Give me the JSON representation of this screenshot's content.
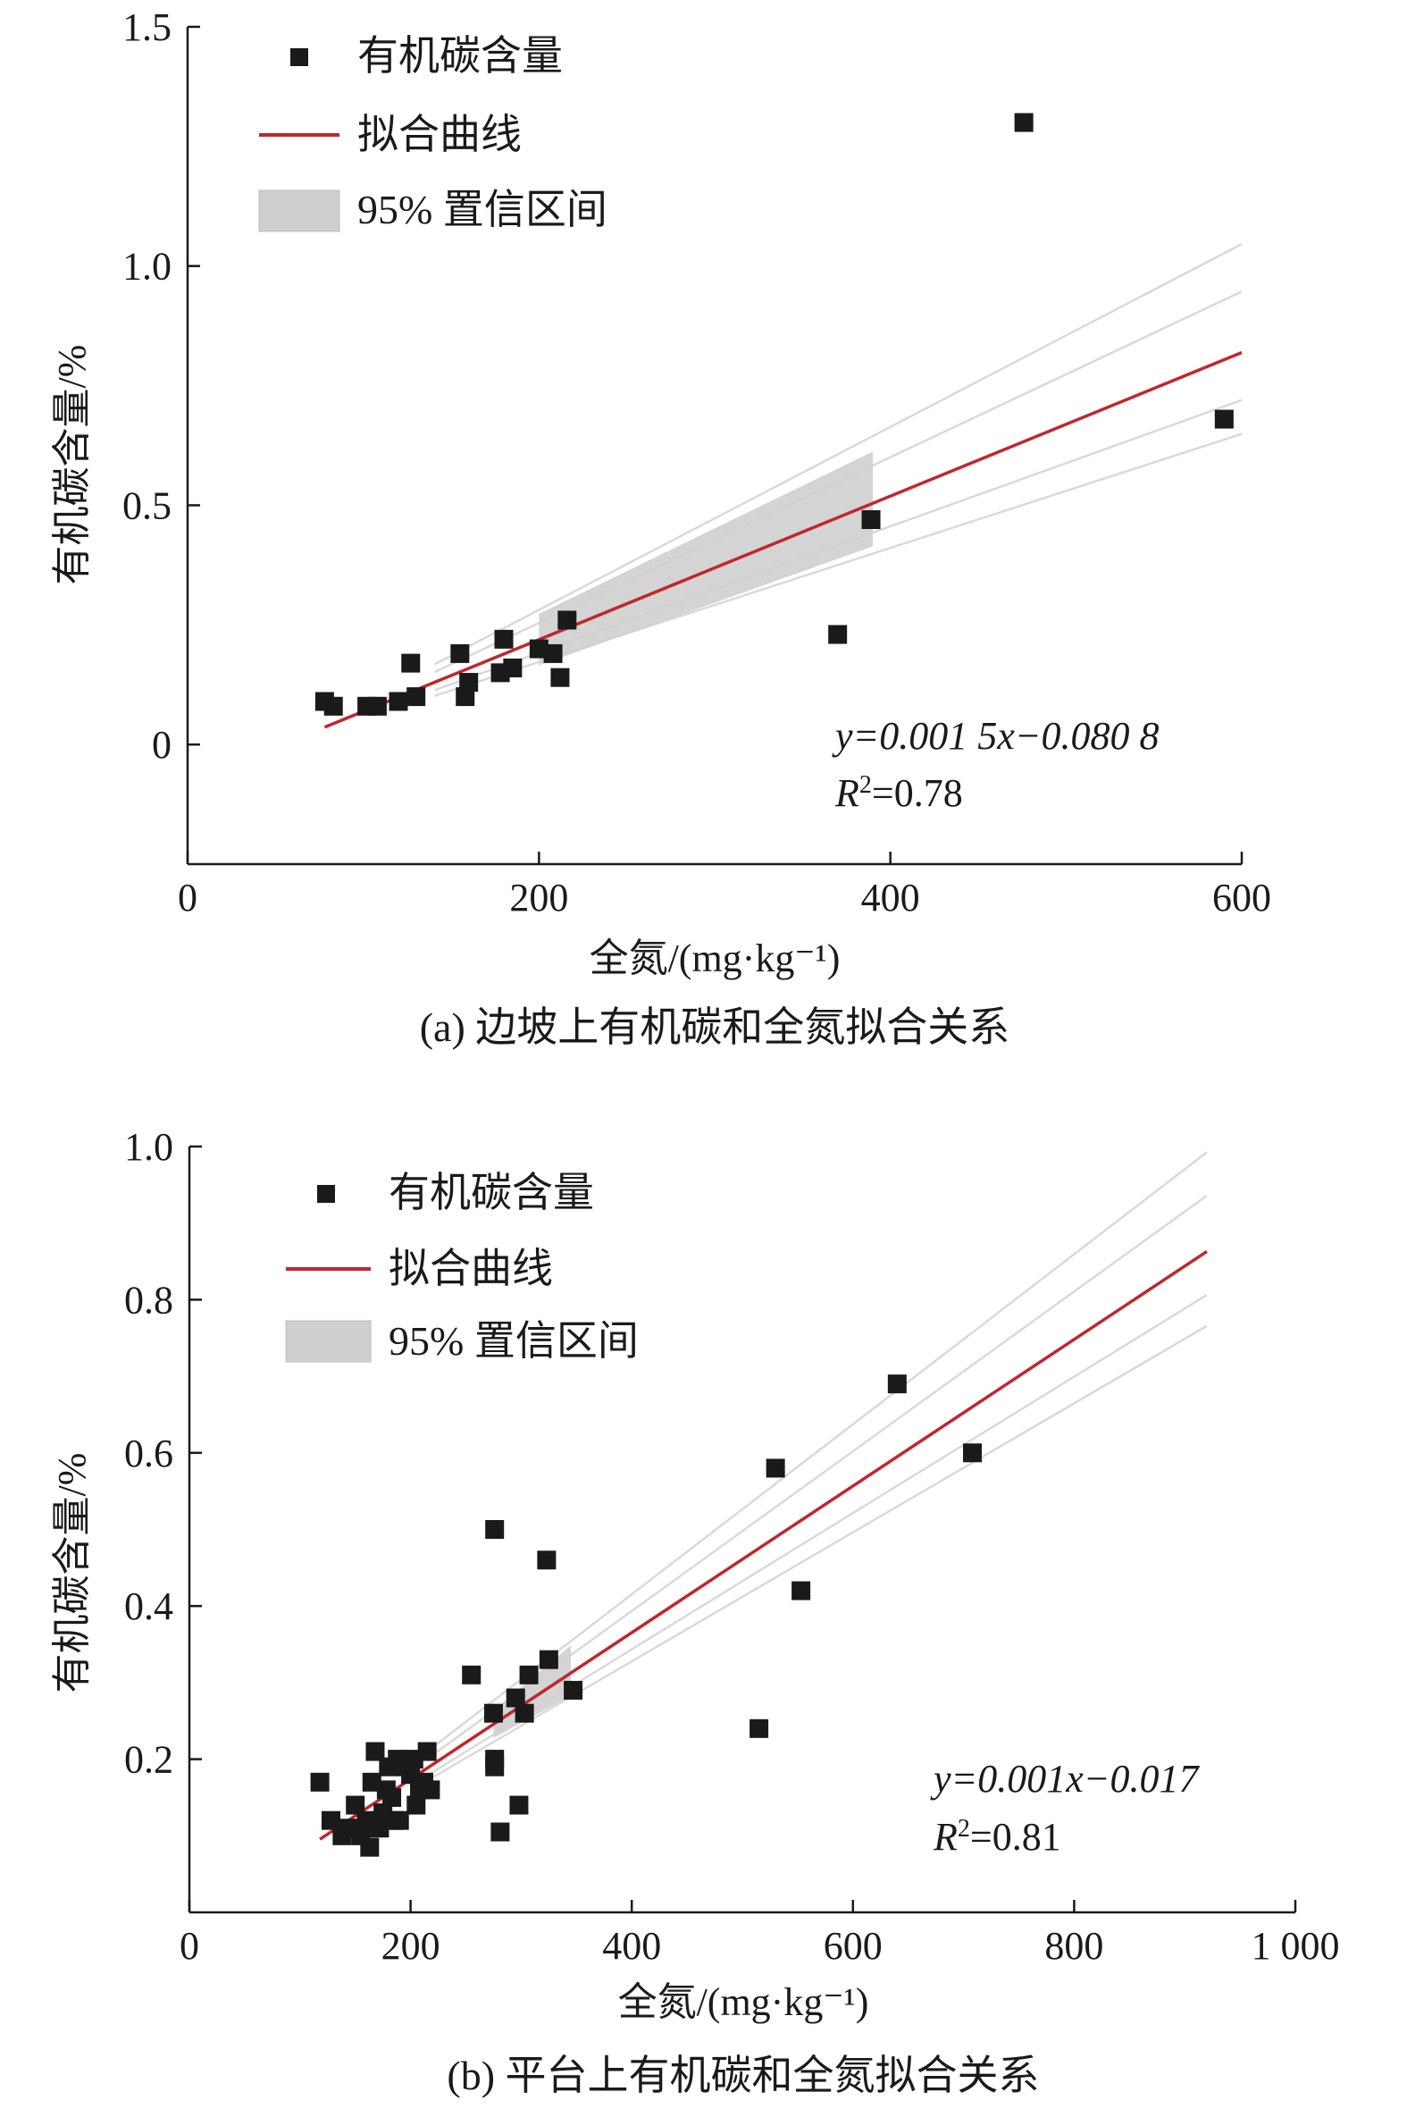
{
  "chart_data": [
    {
      "type": "scatter",
      "panel_caption": "(a) 边坡上有机碳和全氮拟合关系",
      "xlabel": "全氮/(mg·kg⁻¹)",
      "ylabel": "有机碳含量/%",
      "xlim": [
        0,
        600
      ],
      "ylim": [
        -0.25,
        1.5
      ],
      "x_ticks": [
        0,
        200,
        400,
        600
      ],
      "x_tick_labels": [
        "0",
        "200",
        "400",
        "600"
      ],
      "y_ticks": [
        0,
        0.5,
        1.0,
        1.5
      ],
      "y_tick_labels": [
        "0",
        "0.5",
        "1.0",
        "1.5"
      ],
      "legend": {
        "position": "top-left",
        "entries": [
          "有机碳含量",
          "拟合曲线",
          "95% 置信区间"
        ]
      },
      "equation": "y=0.001 5x−0.080 8",
      "r2_prefix": "R",
      "r2_sup": "2",
      "r2_value": "=0.78",
      "fit": {
        "slope": 0.0015,
        "intercept": -0.0808,
        "x_range": [
          78,
          600
        ]
      },
      "confidence_band": {
        "x_range": [
          200,
          390
        ],
        "upper_offset": 0.09,
        "lower_offset": 0.09
      },
      "colors": {
        "fit_line": "#c0272d",
        "points": "#1a1a1a",
        "band": "#cfcfcf"
      },
      "points": [
        [
          78,
          0.09
        ],
        [
          83,
          0.08
        ],
        [
          102,
          0.08
        ],
        [
          108,
          0.08
        ],
        [
          120,
          0.09
        ],
        [
          127,
          0.17
        ],
        [
          130,
          0.1
        ],
        [
          155,
          0.19
        ],
        [
          158,
          0.1
        ],
        [
          160,
          0.13
        ],
        [
          178,
          0.15
        ],
        [
          180,
          0.22
        ],
        [
          185,
          0.16
        ],
        [
          200,
          0.2
        ],
        [
          208,
          0.19
        ],
        [
          212,
          0.14
        ],
        [
          216,
          0.26
        ],
        [
          370,
          0.23
        ],
        [
          389,
          0.47
        ],
        [
          476,
          1.3
        ],
        [
          590,
          0.68
        ]
      ]
    },
    {
      "type": "scatter",
      "panel_caption": "(b) 平台上有机碳和全氮拟合关系",
      "xlabel": "全氮/(mg·kg⁻¹)",
      "ylabel": "有机碳含量/%",
      "xlim": [
        0,
        1000
      ],
      "ylim": [
        0,
        1.0
      ],
      "x_ticks": [
        0,
        200,
        400,
        600,
        800,
        1000
      ],
      "x_tick_labels": [
        "0",
        "200",
        "400",
        "600",
        "800",
        "1 000"
      ],
      "y_ticks": [
        0.2,
        0.4,
        0.6,
        0.8,
        1.0
      ],
      "y_tick_labels": [
        "0.2",
        "0.4",
        "0.6",
        "0.8",
        "1.0"
      ],
      "legend": {
        "position": "top-left",
        "entries": [
          "有机碳含量",
          "拟合曲线",
          "95% 置信区间"
        ]
      },
      "equation": "y=0.001x−0.017",
      "r2_prefix": "R",
      "r2_sup": "2",
      "r2_value": "=0.81",
      "fit": {
        "slope": 0.000957,
        "intercept": -0.0175,
        "x_range": [
          118,
          920
        ]
      },
      "confidence_band": {
        "x_range": [
          275,
          345
        ],
        "upper_offset": 0.03,
        "lower_offset": 0.03
      },
      "colors": {
        "fit_line": "#c0272d",
        "points": "#1a1a1a",
        "band": "#cfcfcf"
      },
      "points": [
        [
          118,
          0.17
        ],
        [
          128,
          0.12
        ],
        [
          138,
          0.1
        ],
        [
          145,
          0.11
        ],
        [
          150,
          0.14
        ],
        [
          155,
          0.1
        ],
        [
          160,
          0.12
        ],
        [
          163,
          0.085
        ],
        [
          165,
          0.17
        ],
        [
          168,
          0.21
        ],
        [
          172,
          0.11
        ],
        [
          175,
          0.13
        ],
        [
          178,
          0.16
        ],
        [
          180,
          0.19
        ],
        [
          183,
          0.15
        ],
        [
          185,
          0.12
        ],
        [
          188,
          0.2
        ],
        [
          190,
          0.12
        ],
        [
          195,
          0.19
        ],
        [
          200,
          0.18
        ],
        [
          203,
          0.2
        ],
        [
          205,
          0.14
        ],
        [
          208,
          0.16
        ],
        [
          212,
          0.17
        ],
        [
          215,
          0.21
        ],
        [
          218,
          0.16
        ],
        [
          255,
          0.31
        ],
        [
          275,
          0.26
        ],
        [
          276,
          0.2
        ],
        [
          276,
          0.19
        ],
        [
          276,
          0.5
        ],
        [
          281,
          0.105
        ],
        [
          295,
          0.28
        ],
        [
          298,
          0.14
        ],
        [
          303,
          0.26
        ],
        [
          307,
          0.31
        ],
        [
          323,
          0.46
        ],
        [
          325,
          0.33
        ],
        [
          347,
          0.29
        ],
        [
          515,
          0.24
        ],
        [
          530,
          0.58
        ],
        [
          553,
          0.42
        ],
        [
          640,
          0.69
        ],
        [
          708,
          0.6
        ]
      ]
    }
  ]
}
